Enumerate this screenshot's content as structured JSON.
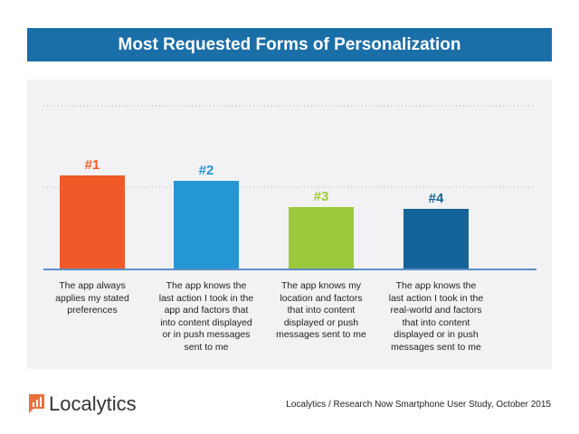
{
  "chart_data": {
    "type": "bar",
    "title": "Most Requested Forms of Personalization",
    "categories": [
      "The app always applies my stated preferences",
      "The app knows the last action I took in the app and factors that into content displayed or in push messages sent to me",
      "The app knows my location and factors that into content displayed or push messages sent to me",
      "The app knows the last action I took in the real-world and factors that into content displayed or in push messages sent to me"
    ],
    "category_lines": [
      [
        "The app always",
        "applies my stated",
        "preferences"
      ],
      [
        "The app knows the",
        "last action I took in the",
        "app and factors that",
        "into content displayed",
        "or in push messages",
        "sent to me"
      ],
      [
        "The app knows my",
        "location and factors",
        "that into content",
        "displayed or push",
        "messages sent to me"
      ],
      [
        "The app knows the",
        "last action I took in the",
        "real-world and factors",
        "that into content",
        "displayed or in push",
        "messages sent to me"
      ]
    ],
    "data_labels": [
      "#1",
      "#2",
      "#3",
      "#4"
    ],
    "values": [
      103,
      97,
      68,
      66
    ],
    "ylim": [
      0,
      180
    ],
    "grid": true,
    "colors": [
      "#f05a28",
      "#2596d4",
      "#9bc93c",
      "#146499"
    ],
    "xlabel": "",
    "ylabel": ""
  },
  "brand": {
    "name": "Localytics",
    "color": "#e8713c"
  },
  "source": "Localytics / Research Now Smartphone User Study, October 2015"
}
